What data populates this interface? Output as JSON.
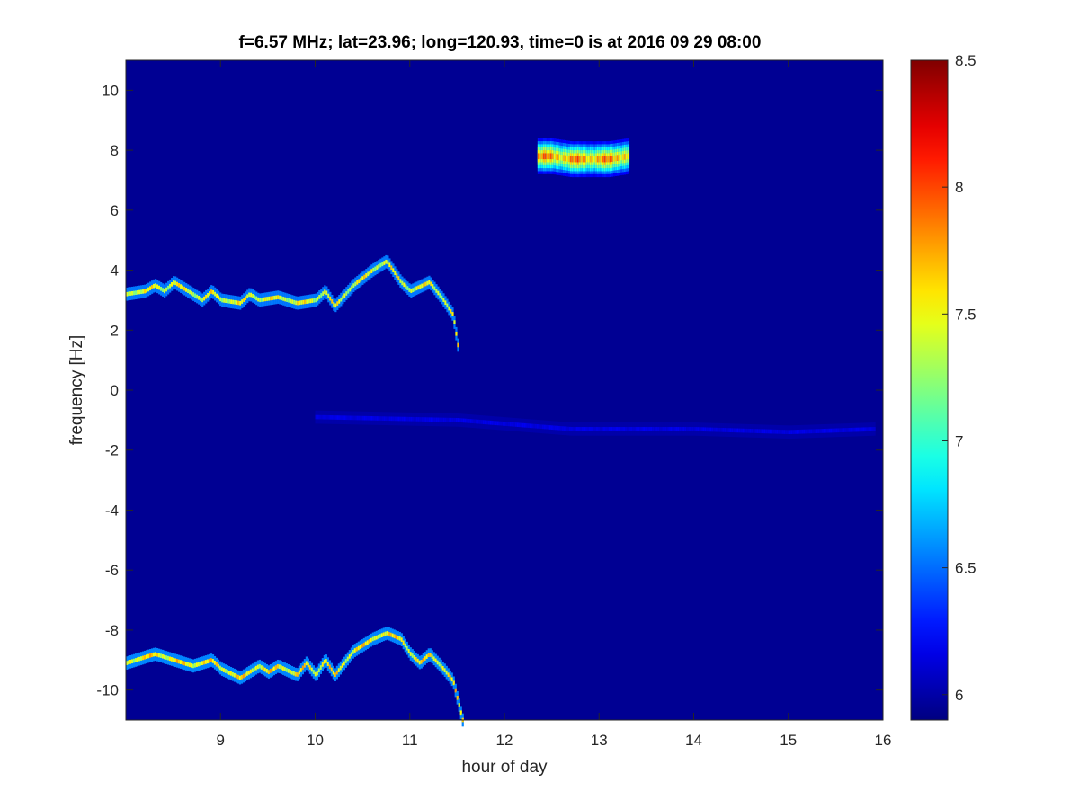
{
  "chart_data": {
    "type": "heatmap",
    "title": "f=6.57 MHz;  lat=23.96; long=120.93, time=0 is at 2016 09 29 08:00",
    "xlabel": "hour of day",
    "ylabel": "frequency [Hz]",
    "xlim": [
      8,
      16
    ],
    "ylim": [
      -11,
      11
    ],
    "x_ticks": [
      9,
      10,
      11,
      12,
      13,
      14,
      15,
      16
    ],
    "y_ticks": [
      -10,
      -8,
      -6,
      -4,
      -2,
      0,
      2,
      4,
      6,
      8,
      10
    ],
    "colorbar": {
      "limits": [
        5.9,
        8.5
      ],
      "ticks": [
        6,
        6.5,
        7,
        7.5,
        8,
        8.5
      ],
      "colormap": "jet"
    },
    "background_value": 5.95,
    "traces": [
      {
        "x": [
          8.0,
          8.2,
          8.3,
          8.4,
          8.5,
          8.6,
          8.8,
          8.9,
          9.0,
          9.2,
          9.3,
          9.4,
          9.6,
          9.8,
          10.0,
          10.1,
          10.2,
          10.4,
          10.6,
          10.75,
          10.9,
          11.0,
          11.2,
          11.35,
          11.45,
          11.5
        ],
        "y": [
          3.2,
          3.3,
          3.5,
          3.3,
          3.6,
          3.4,
          3.0,
          3.3,
          3.0,
          2.9,
          3.2,
          3.0,
          3.1,
          2.9,
          3.0,
          3.3,
          2.8,
          3.5,
          4.0,
          4.3,
          3.6,
          3.3,
          3.6,
          3.0,
          2.5,
          1.5
        ],
        "peak": 7.7
      },
      {
        "x": [
          8.0,
          8.2,
          8.3,
          8.5,
          8.7,
          8.9,
          9.0,
          9.2,
          9.3,
          9.4,
          9.5,
          9.6,
          9.8,
          9.9,
          10.0,
          10.1,
          10.2,
          10.4,
          10.6,
          10.75,
          10.9,
          11.0,
          11.1,
          11.2,
          11.35,
          11.45,
          11.55
        ],
        "y": [
          -9.1,
          -8.9,
          -8.8,
          -9.0,
          -9.2,
          -9.0,
          -9.3,
          -9.6,
          -9.4,
          -9.2,
          -9.4,
          -9.2,
          -9.5,
          -9.1,
          -9.5,
          -9.0,
          -9.5,
          -8.7,
          -8.3,
          -8.1,
          -8.3,
          -8.8,
          -9.1,
          -8.8,
          -9.3,
          -9.7,
          -11.0
        ],
        "peak": 7.8
      },
      {
        "x": [
          12.35,
          12.5,
          12.7,
          12.9,
          13.1,
          13.3
        ],
        "y": [
          7.8,
          7.8,
          7.7,
          7.7,
          7.7,
          7.8
        ],
        "peak": 8.45,
        "spread": [
          7.2,
          8.4
        ]
      },
      {
        "x": [
          10.0,
          11.5,
          12.7,
          14.0,
          15.0,
          15.9
        ],
        "y": [
          -0.9,
          -1.0,
          -1.3,
          -1.3,
          -1.4,
          -1.3
        ],
        "peak": 6.2
      }
    ]
  }
}
